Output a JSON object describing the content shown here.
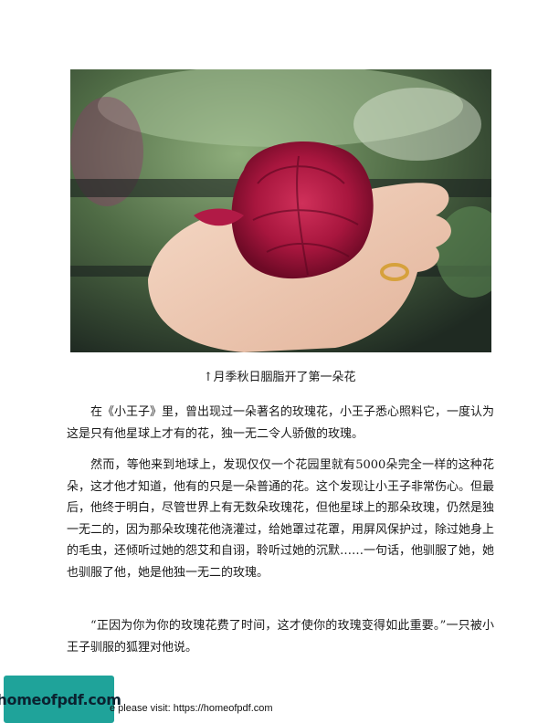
{
  "figure": {
    "caption": "↑月季秋日胭脂开了第一朵花",
    "icon": "rose-in-hand-photo"
  },
  "paragraphs": [
    "在《小王子》里，曾出现过一朵著名的玫瑰花，小王子悉心照料它，一度认为这是只有他星球上才有的花，独一无二令人骄傲的玫瑰。",
    "然而，等他来到地球上，发现仅仅一个花园里就有5000朵完全一样的这种花朵，这才他才知道，他有的只是一朵普通的花。这个发现让小王子非常伤心。但最后，他终于明白，尽管世界上有无数朵玫瑰花，但他星球上的那朵玫瑰，仍然是独一无二的，因为那朵玫瑰花他浇灌过，给她罩过花罩，用屏风保护过，除过她身上的毛虫，还倾听过她的怨艾和自诩，聆听过她的沉默……一句话，他驯服了她，她也驯服了他，她是他独一无二的玫瑰。",
    "“正因为你为你的玫瑰花费了时间，这才使你的玫瑰变得如此重要。”一只被小王子驯服的狐狸对他说。"
  ],
  "footer": {
    "logo_text": "homeofpdf.com",
    "link_text": "e please visit: https://homeofpdf.com",
    "logo_color": "#1fa39a"
  }
}
